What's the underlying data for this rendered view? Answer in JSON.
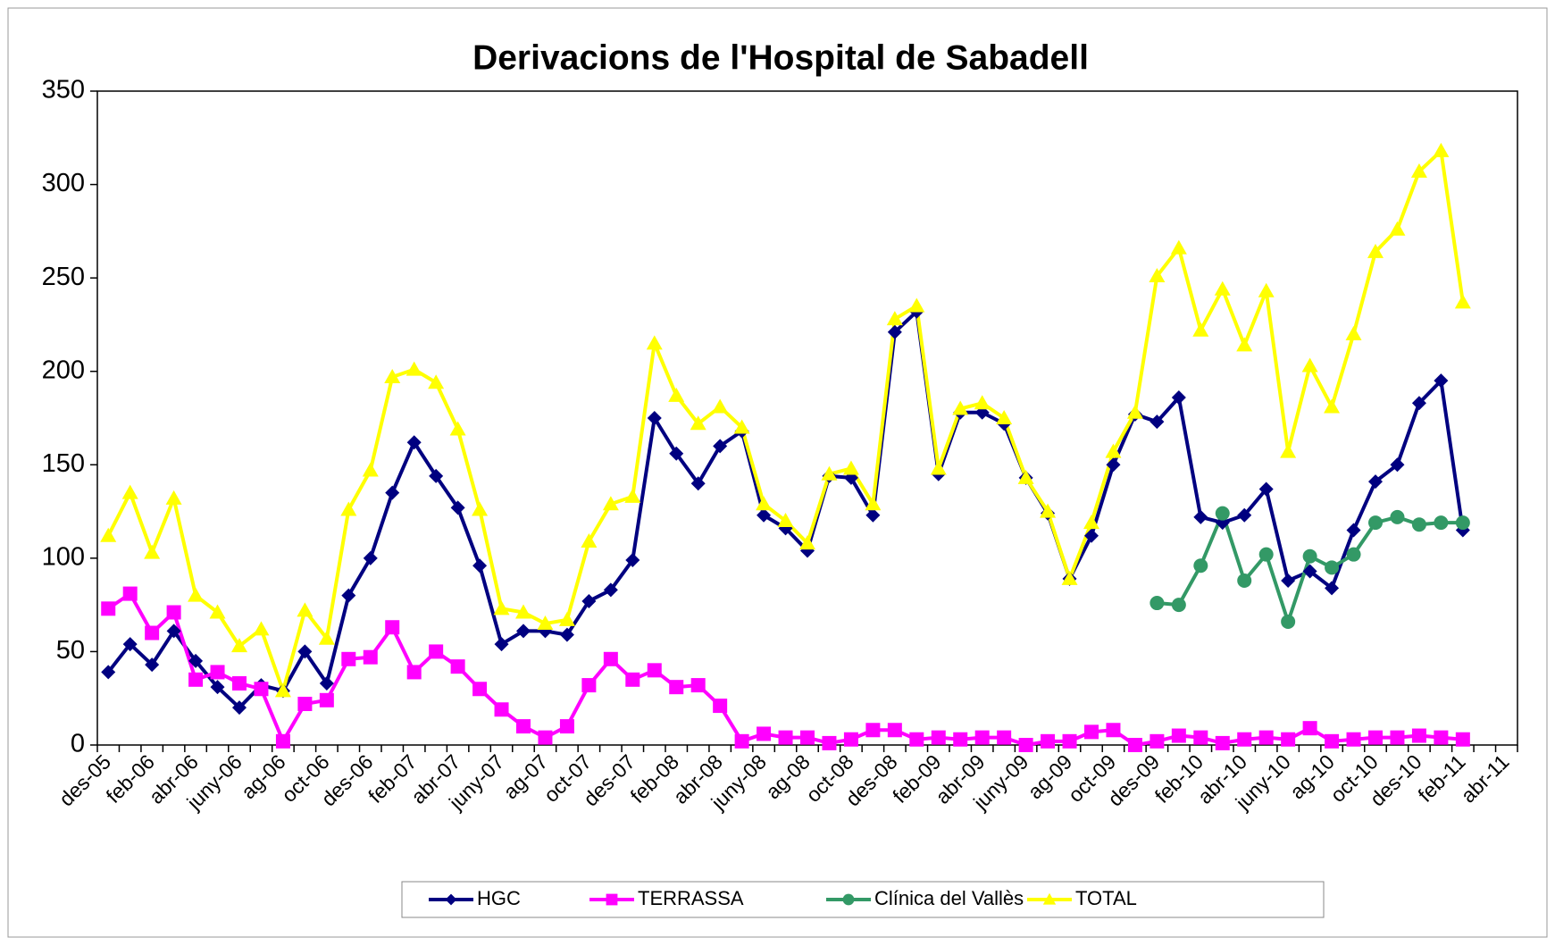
{
  "chart_data": {
    "type": "line",
    "title": "Derivacions de l'Hospital de Sabadell",
    "categories": [
      "des-05",
      null,
      "feb-06",
      null,
      "abr-06",
      null,
      "juny-06",
      null,
      "ag-06",
      null,
      "oct-06",
      null,
      "des-06",
      null,
      "feb-07",
      null,
      "abr-07",
      null,
      "juny-07",
      null,
      "ag-07",
      null,
      "oct-07",
      null,
      "des-07",
      null,
      "feb-08",
      null,
      "abr-08",
      null,
      "juny-08",
      null,
      "ag-08",
      null,
      "oct-08",
      null,
      "des-08",
      null,
      "feb-09",
      null,
      "abr-09",
      null,
      "juny-09",
      null,
      "ag-09",
      null,
      "oct-09",
      null,
      "des-09",
      null,
      "feb-10",
      null,
      "abr-10",
      null,
      "juny-10",
      null,
      "ag-10",
      null,
      "oct-10",
      null,
      "des-10",
      null,
      "feb-11",
      null,
      "abr-11"
    ],
    "series": [
      {
        "name": "HGC",
        "color": "#000080",
        "marker": "diamond",
        "values": [
          39,
          54,
          43,
          61,
          45,
          31,
          20,
          32,
          29,
          50,
          33,
          80,
          100,
          135,
          162,
          144,
          127,
          96,
          54,
          61,
          61,
          59,
          77,
          83,
          99,
          175,
          156,
          140,
          160,
          168,
          123,
          116,
          104,
          144,
          143,
          123,
          221,
          232,
          145,
          178,
          178,
          172,
          143,
          124,
          89,
          112,
          150,
          177,
          173,
          186,
          122,
          119,
          123,
          137,
          88,
          93,
          84,
          115,
          141,
          150,
          183,
          195,
          115,
          null,
          null
        ]
      },
      {
        "name": "TERRASSA",
        "color": "#ff00ff",
        "marker": "square",
        "values": [
          73,
          81,
          60,
          71,
          35,
          39,
          33,
          30,
          2,
          22,
          24,
          46,
          47,
          63,
          39,
          50,
          42,
          30,
          19,
          10,
          4,
          10,
          32,
          46,
          35,
          40,
          31,
          32,
          21,
          2,
          6,
          4,
          4,
          1,
          3,
          8,
          8,
          3,
          4,
          3,
          4,
          4,
          0,
          2,
          2,
          7,
          8,
          0,
          2,
          5,
          4,
          1,
          3,
          4,
          3,
          9,
          2,
          3,
          4,
          4,
          5,
          4,
          3,
          null,
          null
        ]
      },
      {
        "name": "Clínica del Vallès",
        "color": "#339966",
        "marker": "circle",
        "values": [
          null,
          null,
          null,
          null,
          null,
          null,
          null,
          null,
          null,
          null,
          null,
          null,
          null,
          null,
          null,
          null,
          null,
          null,
          null,
          null,
          null,
          null,
          null,
          null,
          null,
          null,
          null,
          null,
          null,
          null,
          null,
          null,
          null,
          null,
          null,
          null,
          null,
          null,
          null,
          null,
          null,
          null,
          null,
          null,
          null,
          null,
          null,
          null,
          76,
          75,
          96,
          124,
          88,
          102,
          66,
          101,
          95,
          102,
          119,
          122,
          118,
          119,
          119,
          null,
          null
        ]
      },
      {
        "name": "TOTAL",
        "color": "#ffff00",
        "marker": "triangle",
        "values": [
          112,
          135,
          103,
          132,
          80,
          71,
          53,
          62,
          29,
          72,
          57,
          126,
          147,
          197,
          201,
          194,
          169,
          126,
          73,
          71,
          65,
          67,
          109,
          129,
          133,
          215,
          187,
          172,
          181,
          170,
          129,
          120,
          108,
          145,
          148,
          129,
          228,
          235,
          148,
          180,
          183,
          175,
          143,
          125,
          89,
          119,
          157,
          178,
          251,
          266,
          222,
          244,
          214,
          243,
          157,
          203,
          181,
          220,
          264,
          276,
          307,
          318,
          237,
          null,
          null
        ]
      }
    ],
    "ylim": [
      0,
      350
    ],
    "yticks": [
      0,
      50,
      100,
      150,
      200,
      250,
      300,
      350
    ],
    "grid": false,
    "legend": "bottom"
  }
}
